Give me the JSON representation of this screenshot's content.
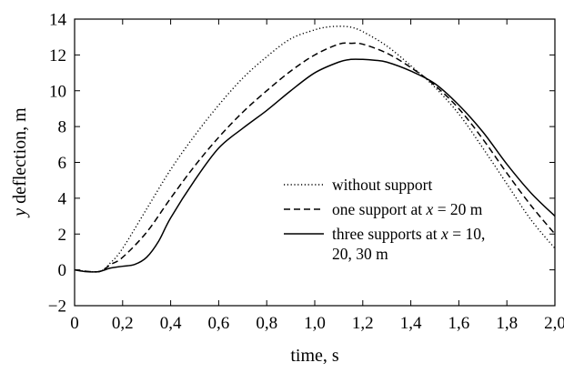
{
  "chart_data": {
    "type": "line",
    "xlabel": "time, s",
    "ylabel_parts": {
      "var": "y",
      "rest": " deflection, m"
    },
    "x_ticks": [
      "0",
      "0,2",
      "0,4",
      "0,6",
      "0,8",
      "1,0",
      "1,2",
      "1,4",
      "1,6",
      "1,8",
      "2,0"
    ],
    "y_ticks": [
      "−2",
      "0",
      "2",
      "4",
      "6",
      "8",
      "10",
      "12",
      "14"
    ],
    "xlim": [
      0,
      2.0
    ],
    "ylim": [
      -2,
      14
    ],
    "grid": false,
    "legend_position": "center-right",
    "series": [
      {
        "name": "without support",
        "style": "dotted",
        "legend_lines": [
          [
            "without support"
          ]
        ],
        "x": [
          0,
          0.1,
          0.15,
          0.2,
          0.3,
          0.4,
          0.5,
          0.6,
          0.7,
          0.8,
          0.9,
          1.0,
          1.05,
          1.1,
          1.15,
          1.2,
          1.3,
          1.4,
          1.5,
          1.6,
          1.7,
          1.8,
          1.9,
          2.0
        ],
        "y": [
          0,
          -0.1,
          0.4,
          1.2,
          3.4,
          5.6,
          7.5,
          9.2,
          10.7,
          11.9,
          12.9,
          13.4,
          13.55,
          13.6,
          13.55,
          13.3,
          12.5,
          11.4,
          10.2,
          8.7,
          6.8,
          4.8,
          2.8,
          1.2
        ]
      },
      {
        "name": "one support at x = 20 m",
        "style": "dashed",
        "legend_lines": [
          [
            "one support at ",
            {
              "i": "x"
            },
            " = 20 m"
          ]
        ],
        "x": [
          0,
          0.1,
          0.15,
          0.2,
          0.3,
          0.4,
          0.5,
          0.6,
          0.7,
          0.8,
          0.9,
          1.0,
          1.1,
          1.15,
          1.2,
          1.3,
          1.4,
          1.5,
          1.6,
          1.7,
          1.8,
          1.9,
          2.0
        ],
        "y": [
          0,
          -0.1,
          0.3,
          0.7,
          2.1,
          4.0,
          5.8,
          7.4,
          8.8,
          10.0,
          11.1,
          12.0,
          12.6,
          12.65,
          12.6,
          12.1,
          11.3,
          10.3,
          9.0,
          7.3,
          5.4,
          3.6,
          2.0
        ]
      },
      {
        "name": "three supports at x = 10, 20, 30 m",
        "style": "solid",
        "legend_lines": [
          [
            "three supports at ",
            {
              "i": "x"
            },
            " = 10,"
          ],
          [
            "20, 30 m"
          ]
        ],
        "x": [
          0,
          0.05,
          0.1,
          0.15,
          0.2,
          0.25,
          0.3,
          0.35,
          0.4,
          0.5,
          0.6,
          0.7,
          0.8,
          0.9,
          1.0,
          1.1,
          1.15,
          1.2,
          1.25,
          1.3,
          1.4,
          1.5,
          1.6,
          1.7,
          1.8,
          1.9,
          2.0
        ],
        "y": [
          0,
          -0.1,
          -0.1,
          0.1,
          0.2,
          0.3,
          0.7,
          1.6,
          2.9,
          5.0,
          6.8,
          7.9,
          8.9,
          10.0,
          11.0,
          11.6,
          11.75,
          11.75,
          11.7,
          11.6,
          11.1,
          10.4,
          9.2,
          7.7,
          5.9,
          4.3,
          3.0
        ]
      }
    ]
  }
}
